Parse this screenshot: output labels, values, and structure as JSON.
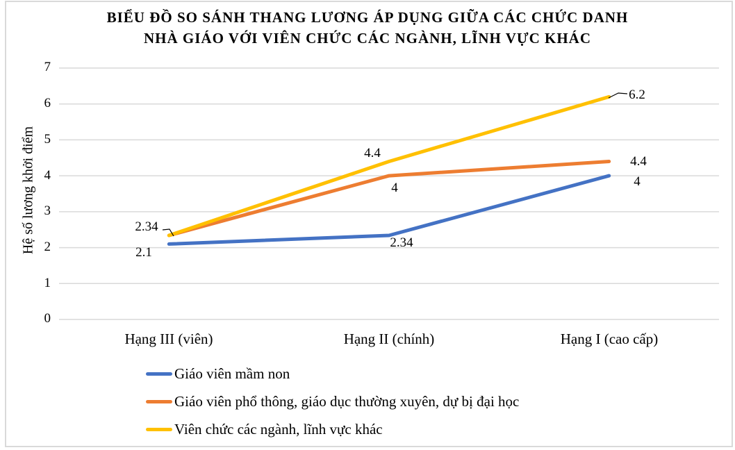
{
  "title": {
    "line1": "BIỂU ĐỒ SO SÁNH THANG LƯƠNG ÁP DỤNG GIỮA CÁC CHỨC DANH",
    "line2": "NHÀ GIÁO VỚI VIÊN CHỨC CÁC NGÀNH, LĨNH VỰC KHÁC"
  },
  "chart_data": {
    "type": "line",
    "categories": [
      "Hạng III (viên)",
      "Hạng II (chính)",
      "Hạng I (cao cấp)"
    ],
    "series": [
      {
        "name": "Giáo viên mầm non",
        "color": "#4472C4",
        "values": [
          2.1,
          2.34,
          4
        ]
      },
      {
        "name": "Giáo viên phổ thông, giáo dục thường xuyên, dự bị đại học",
        "color": "#ED7D31",
        "values": [
          2.34,
          4,
          4.4
        ]
      },
      {
        "name": "Viên chức các ngành, lĩnh vực khác",
        "color": "#FFC000",
        "values": [
          2.34,
          4.4,
          6.2
        ]
      }
    ],
    "xlabel": "",
    "ylabel": "Hệ số lương khởi điểm",
    "ylim": [
      0,
      7
    ],
    "y_ticks": [
      0,
      1,
      2,
      3,
      4,
      5,
      6,
      7
    ],
    "grid": "horizontal",
    "legend_position": "bottom-left"
  },
  "colors": {
    "gridline": "#D9D9D9",
    "frame_border": "#D9D9D9",
    "text": "#000000",
    "leader_line": "#000000"
  }
}
